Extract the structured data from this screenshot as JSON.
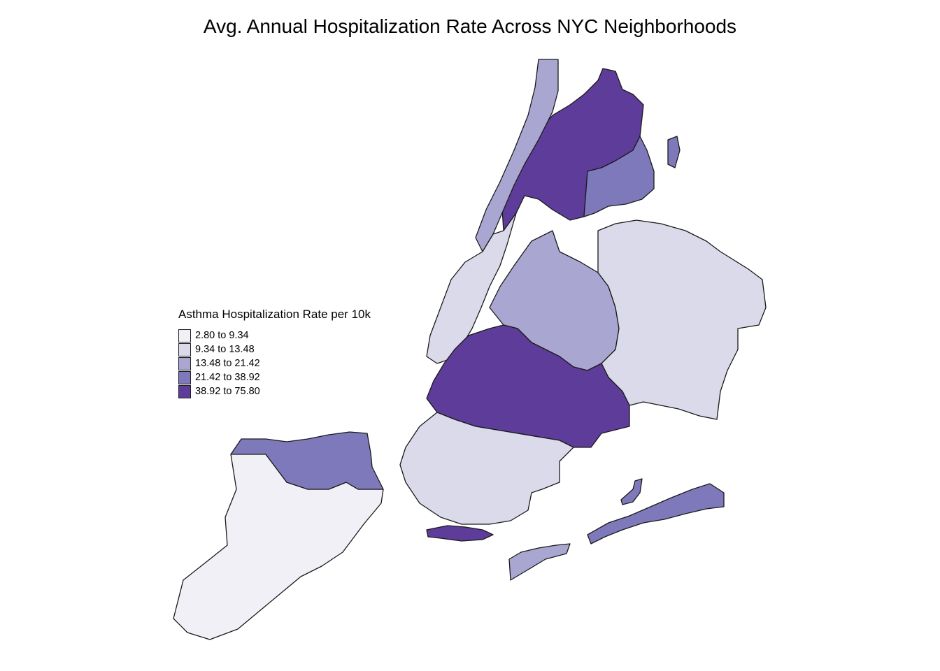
{
  "title": "Avg. Annual Hospitalization Rate Across NYC Neighborhoods",
  "legend": {
    "title": "Asthma Hospitalization Rate per 10k",
    "classes": [
      {
        "label": "2.80 to 9.34",
        "color": "#f2f0f7"
      },
      {
        "label": "9.34 to 13.48",
        "color": "#dadaeb"
      },
      {
        "label": "13.48 to 21.42",
        "color": "#a9a7d1"
      },
      {
        "label": "21.42 to 38.92",
        "color": "#7e79ba"
      },
      {
        "label": "38.92 to 75.80",
        "color": "#5e3c99"
      }
    ]
  },
  "borough_fill_class": {
    "bronx-west": 4,
    "bronx-east": 3,
    "manhattan-north": 2,
    "manhattan-south": 1,
    "queens-west": 2,
    "queens-east": 1,
    "brooklyn-north": 4,
    "brooklyn-south": 1,
    "staten-island-north": 3,
    "staten-island-south": 0,
    "rockaway": 3,
    "coney-island": 4
  }
}
